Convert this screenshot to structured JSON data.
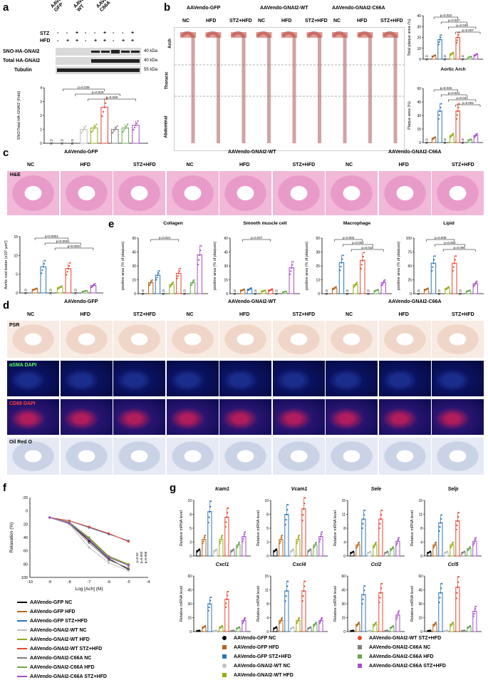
{
  "panels": {
    "a": {
      "letter": "a",
      "groups": [
        "AAVendo-GFP",
        "AAVendo-GNAI2-WT",
        "AAVendo-GNAI2-C66A"
      ],
      "row_labels": [
        "STZ",
        "HFD"
      ],
      "stz_signs": [
        "-",
        "-",
        "+",
        "-",
        "-",
        "+",
        "-",
        "-",
        "+"
      ],
      "hfd_signs": [
        "-",
        "+",
        "+",
        "-",
        "+",
        "+",
        "-",
        "+",
        "+"
      ],
      "blots": [
        "SNO-HA-GNAI2",
        "Total HA-GNAI2",
        "Tubulin"
      ],
      "blot_sizes": [
        "40 kDa",
        "40 kDa",
        "55 kDa"
      ],
      "nd": "N.D",
      "ylabel": "SNO/Total HA-GNAI2 (Fold)",
      "pvals": [
        "p=0.028",
        "p=0.029",
        "p=0.049"
      ],
      "yticks": [
        "0",
        "1",
        "2",
        "3",
        "4"
      ]
    },
    "b": {
      "letter": "b",
      "groups": [
        "AAVendo-GFP",
        "AAVendo-GNAI2-WT",
        "AAVendo-GNAI2-C66A"
      ],
      "conditions": [
        "NC",
        "HFD",
        "STZ+HFD"
      ],
      "regions": [
        "Arch",
        "Thoracic",
        "Abdominal"
      ],
      "chart1_ylabel": "Total plaque area (%)",
      "chart1_pvals": [
        "p=0.022",
        "p=0.027",
        "p=0.049",
        "p=0.007"
      ],
      "chart2_title": "Aortic Arch",
      "chart2_ylabel": "Plaque area (%)",
      "chart2_pvals": [
        "p=0.026",
        "p=0.021",
        "p=0.044",
        "p=0.002"
      ],
      "nd": "N.D"
    },
    "c": {
      "letter": "c",
      "groups": [
        "AAVendo-GFP",
        "AAVendo-GNAI2-WT",
        "AAVendo-GNAI2-C66A"
      ],
      "conditions": [
        "NC",
        "HFD",
        "STZ+HFD"
      ],
      "stain": "H&E",
      "ylabel": "Aortic root lesion (x10⁵ μm²)",
      "pvals": [
        "p<0.0001",
        "p<0.0001",
        "p<0.0001"
      ]
    },
    "e": {
      "letter": "e",
      "charts": [
        {
          "title": "Collagen",
          "ylabel": "positive area (% of plaques)",
          "pvals": [
            "p=0.021"
          ]
        },
        {
          "title": "Smooth muscle cell",
          "ylabel": "positive area (% of plaques)",
          "pvals": [
            "p=0.027"
          ]
        },
        {
          "title": "Macrophage",
          "ylabel": "positive area (% of plaques)",
          "pvals": [
            "p=0.004",
            "p=0.002",
            "p=0.018"
          ]
        },
        {
          "title": "Lipid",
          "ylabel": "positive area (% of plaques)",
          "pvals": [
            "p=0.009",
            "p=0.002",
            "p=0.006"
          ]
        }
      ]
    },
    "d": {
      "letter": "d",
      "groups": [
        "AAVendo-GFP",
        "AAVendo-GNAI2-WT",
        "AAVendo-GNAI2-C66A"
      ],
      "conditions": [
        "NC",
        "HFD",
        "STZ+HFD"
      ],
      "rows": [
        "PSR",
        "αSMA DAPI",
        "CD68 DAPI",
        "Oil Red O"
      ]
    },
    "f": {
      "letter": "f",
      "ylabel": "Relaxation (%)",
      "xlabel": "Log [Ach] (M)",
      "pvals": [
        "p=0.02",
        "p=0.003",
        "p=0.008"
      ],
      "legend": [
        "AAVendo-GFP NC",
        "AAVendo-GFP HFD",
        "AAVendo-GFP STZ+HFD",
        "AAVendo-GNAI2-WT NC",
        "AAVendo-GNAI2-WT HFD",
        "AAVendo-GNAI2-WT STZ+HFD",
        "AAVendo-GNAI2-C66A NC",
        "AAVendo-GNAI2-C66A HFD",
        "AAVendo-GNAI2-C66A STZ+HFD"
      ]
    },
    "g": {
      "letter": "g",
      "genes": [
        "Icam1",
        "Vcam1",
        "Sele",
        "Selp",
        "Cxcl1",
        "Cxcl4",
        "Ccl2",
        "Ccl5"
      ],
      "ylabel": "Relative mRNA level",
      "legend": [
        "AAVendo-GFP NC",
        "AAVendo-GFP HFD",
        "AAVendo-GFP STZ+HFD",
        "AAVendo-GNAI2-WT NC",
        "AAVendo-GNAI2-WT HFD",
        "AAVendo-GNAI2-WT STZ+HFD",
        "AAVendo-GNAI2-C66A NC",
        "AAVendo-GNAI2-C66A HFD",
        "AAVendo-GNAI2-C66A STZ+HFD"
      ]
    }
  },
  "colors": {
    "gfp_nc": "#000000",
    "gfp_hfd": "#b5651d",
    "gfp_stz": "#2e75b6",
    "wt_nc": "#bfbfbf",
    "wt_hfd": "#8fae1b",
    "wt_stz": "#e8442e",
    "c66_nc": "#7f7f7f",
    "c66_hfd": "#6aa84f",
    "c66_stz": "#a64dcb"
  },
  "chart_data": [
    {
      "type": "bar",
      "id": "a-bar",
      "categories": [
        "GFP -/-",
        "GFP HFD",
        "GFP STZ+HFD",
        "WT NC",
        "WT HFD",
        "WT STZ+HFD",
        "C66A NC",
        "C66A HFD",
        "C66A STZ+HFD"
      ],
      "values": [
        null,
        null,
        null,
        1.0,
        1.1,
        2.6,
        1.0,
        1.1,
        1.3
      ],
      "ylim": [
        0,
        4
      ]
    },
    {
      "type": "bar",
      "id": "b-total",
      "categories": [
        "GFP NC",
        "GFP HFD",
        "GFP STZ+HFD",
        "WT NC",
        "WT HFD",
        "WT STZ+HFD",
        "C66A NC",
        "C66A HFD",
        "C66A STZ+HFD"
      ],
      "values": [
        null,
        3,
        18,
        null,
        5,
        20,
        null,
        2,
        4
      ],
      "ylim": [
        0,
        40
      ]
    },
    {
      "type": "bar",
      "id": "b-arch",
      "categories": [
        "GFP NC",
        "GFP HFD",
        "GFP STZ+HFD",
        "WT NC",
        "WT HFD",
        "WT STZ+HFD",
        "C66A NC",
        "C66A HFD",
        "C66A STZ+HFD"
      ],
      "values": [
        null,
        5,
        35,
        null,
        8,
        35,
        null,
        3,
        8
      ],
      "ylim": [
        0,
        60
      ]
    },
    {
      "type": "bar",
      "id": "c-root",
      "categories": [
        "GFP NC",
        "GFP HFD",
        "GFP STZ+HFD",
        "WT NC",
        "WT HFD",
        "WT STZ+HFD",
        "C66A NC",
        "C66A HFD",
        "C66A STZ+HFD"
      ],
      "values": [
        null,
        1,
        7,
        null,
        1.5,
        6.5,
        null,
        0.5,
        2
      ],
      "ylim": [
        0,
        15
      ]
    },
    {
      "type": "bar",
      "id": "e-collagen",
      "categories": [
        "GFP NC",
        "GFP HFD",
        "GFP STZ+HFD",
        "WT NC",
        "WT HFD",
        "WT STZ+HFD",
        "C66A NC",
        "C66A HFD",
        "C66A STZ+HFD"
      ],
      "values": [
        null,
        12,
        20,
        null,
        10,
        22,
        null,
        12,
        42
      ],
      "ylim": [
        0,
        60
      ]
    },
    {
      "type": "bar",
      "id": "e-smc",
      "categories": [
        "GFP NC",
        "GFP HFD",
        "GFP STZ+HFD",
        "WT NC",
        "WT HFD",
        "WT STZ+HFD",
        "C66A NC",
        "C66A HFD",
        "C66A STZ+HFD"
      ],
      "values": [
        null,
        4,
        5,
        null,
        3,
        4,
        null,
        2,
        28
      ],
      "ylim": [
        0,
        60
      ]
    },
    {
      "type": "bar",
      "id": "e-macro",
      "categories": [
        "GFP NC",
        "GFP HFD",
        "GFP STZ+HFD",
        "WT NC",
        "WT HFD",
        "WT STZ+HFD",
        "C66A NC",
        "C66A HFD",
        "C66A STZ+HFD"
      ],
      "values": [
        null,
        5,
        28,
        null,
        8,
        30,
        null,
        3,
        10
      ],
      "ylim": [
        0,
        50
      ]
    },
    {
      "type": "bar",
      "id": "e-lipid",
      "categories": [
        "GFP NC",
        "GFP HFD",
        "GFP STZ+HFD",
        "WT NC",
        "WT HFD",
        "WT STZ+HFD",
        "C66A NC",
        "C66A HFD",
        "C66A STZ+HFD"
      ],
      "values": [
        null,
        8,
        55,
        null,
        10,
        55,
        null,
        5,
        18
      ],
      "ylim": [
        0,
        100
      ]
    },
    {
      "type": "line",
      "id": "f-relax",
      "x": [
        -9,
        -8,
        -7,
        -6,
        -5
      ],
      "series": [
        {
          "name": "AAVendo-GFP NC",
          "values": [
            10,
            18,
            45,
            72,
            88
          ]
        },
        {
          "name": "AAVendo-GFP HFD",
          "values": [
            10,
            18,
            42,
            70,
            82
          ]
        },
        {
          "name": "AAVendo-GFP STZ+HFD",
          "values": [
            10,
            15,
            25,
            35,
            45
          ]
        },
        {
          "name": "AAVendo-GNAI2-WT NC",
          "values": [
            10,
            20,
            55,
            78,
            90
          ]
        },
        {
          "name": "AAVendo-GNAI2-WT HFD",
          "values": [
            10,
            17,
            40,
            68,
            80
          ]
        },
        {
          "name": "AAVendo-GNAI2-WT STZ+HFD",
          "values": [
            10,
            15,
            24,
            34,
            46
          ]
        },
        {
          "name": "AAVendo-GNAI2-C66A NC",
          "values": [
            10,
            19,
            48,
            74,
            86
          ]
        },
        {
          "name": "AAVendo-GNAI2-C66A HFD",
          "values": [
            10,
            17,
            41,
            69,
            81
          ]
        },
        {
          "name": "AAVendo-GNAI2-C66A STZ+HFD",
          "values": [
            10,
            18,
            43,
            70,
            82
          ]
        }
      ],
      "xlim": [
        -10,
        -4
      ],
      "ylim": [
        100,
        -20
      ],
      "xlabel": "Log [Ach] (M)",
      "ylabel": "Relaxation (%)"
    },
    {
      "type": "bar",
      "id": "g-mrna",
      "genes": [
        "Icam1",
        "Vcam1",
        "Sele",
        "Selp",
        "Cxcl1",
        "Cxcl4",
        "Ccl2",
        "Ccl5"
      ],
      "categories": [
        "GFP NC",
        "GFP HFD",
        "GFP STZ+HFD",
        "WT NC",
        "WT HFD",
        "WT STZ+HFD",
        "C66A NC",
        "C66A HFD",
        "C66A STZ+HFD"
      ],
      "series": [
        {
          "name": "Icam1",
          "values": [
            1,
            3,
            8,
            1,
            3,
            7,
            1,
            2,
            3.5
          ]
        },
        {
          "name": "Vcam1",
          "values": [
            1,
            3,
            7.5,
            1,
            3,
            8.5,
            1,
            2,
            3.5
          ]
        },
        {
          "name": "Sele",
          "values": [
            1,
            3,
            10,
            1,
            3,
            10,
            1,
            2,
            4
          ]
        },
        {
          "name": "Selp",
          "values": [
            1,
            3,
            9,
            1,
            3,
            9.5,
            1,
            2,
            4
          ]
        },
        {
          "name": "Cxcl1",
          "values": [
            1,
            5,
            30,
            1,
            5,
            35,
            1,
            4,
            12
          ]
        },
        {
          "name": "Cxcl4",
          "values": [
            1,
            3,
            11,
            1,
            3,
            11,
            1,
            2,
            3
          ]
        },
        {
          "name": "Ccl2",
          "values": [
            1,
            8,
            40,
            1,
            8,
            42,
            1,
            5,
            18
          ]
        },
        {
          "name": "Ccl5",
          "values": [
            1,
            8,
            42,
            1,
            8,
            48,
            1,
            5,
            22
          ]
        }
      ]
    }
  ]
}
